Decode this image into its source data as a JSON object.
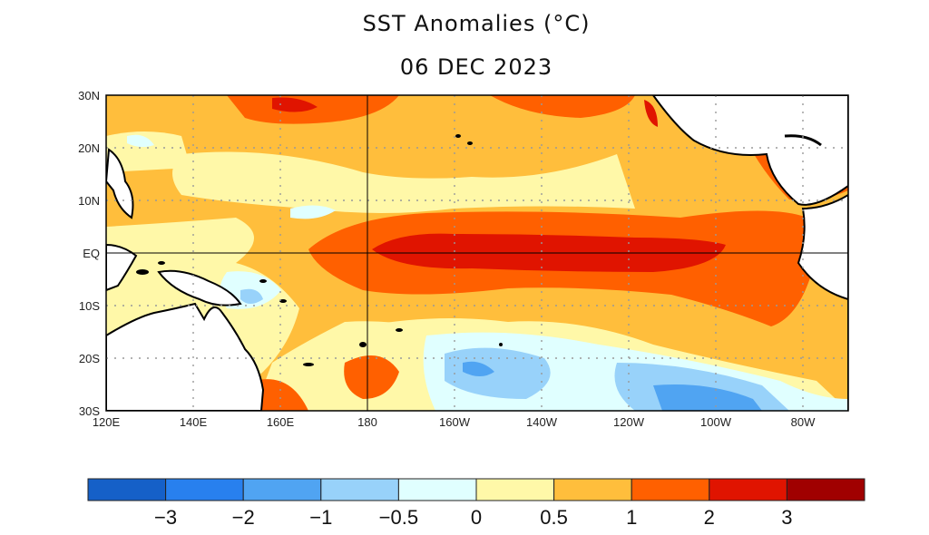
{
  "title": "SST Anomalies (°C)",
  "date": "06 DEC 2023",
  "map": {
    "lat_labels": [
      "30N",
      "20N",
      "10N",
      "EQ",
      "10S",
      "20S",
      "30S"
    ],
    "lon_labels": [
      "120E",
      "140E",
      "160E",
      "180",
      "160W",
      "140W",
      "120W",
      "100W",
      "80W"
    ],
    "region": "Tropical Pacific Ocean, 30S-30N, 120E-70W"
  },
  "colorbar": {
    "colors": [
      "#1560c8",
      "#2880ee",
      "#50a4f2",
      "#98d2fa",
      "#e0ffff",
      "#fff8a8",
      "#ffbe3c",
      "#ff6000",
      "#e01400",
      "#a00000"
    ],
    "labels": [
      "−3",
      "−2",
      "−1",
      "−0.5",
      "0",
      "0.5",
      "1",
      "2",
      "3"
    ]
  }
}
